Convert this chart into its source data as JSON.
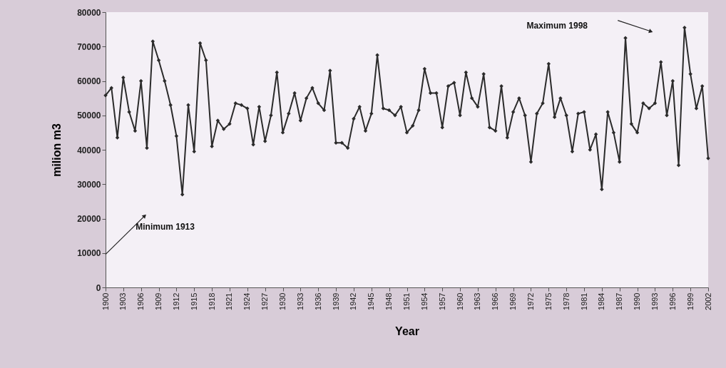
{
  "chart_data": {
    "type": "line",
    "xlabel": "Year",
    "ylabel": "milion m3",
    "x": [
      1900,
      1901,
      1902,
      1903,
      1904,
      1905,
      1906,
      1907,
      1908,
      1909,
      1910,
      1911,
      1912,
      1913,
      1914,
      1915,
      1916,
      1917,
      1918,
      1919,
      1920,
      1921,
      1922,
      1923,
      1924,
      1925,
      1926,
      1927,
      1928,
      1929,
      1930,
      1931,
      1932,
      1933,
      1934,
      1935,
      1936,
      1937,
      1938,
      1939,
      1940,
      1941,
      1942,
      1943,
      1944,
      1945,
      1946,
      1947,
      1948,
      1949,
      1950,
      1951,
      1952,
      1953,
      1954,
      1955,
      1956,
      1957,
      1958,
      1959,
      1960,
      1961,
      1962,
      1963,
      1964,
      1965,
      1966,
      1967,
      1968,
      1969,
      1970,
      1971,
      1972,
      1973,
      1974,
      1975,
      1976,
      1977,
      1978,
      1979,
      1980,
      1981,
      1982,
      1983,
      1984,
      1985,
      1986,
      1987,
      1988,
      1989,
      1990,
      1991,
      1992,
      1993,
      1994,
      1995,
      1996,
      1997,
      1998,
      1999,
      2000,
      2001,
      2002
    ],
    "series": [
      {
        "color": "#2b2b2b",
        "values": [
          55800,
          58000,
          43500,
          61000,
          51000,
          45500,
          60000,
          40500,
          71500,
          66000,
          60000,
          53000,
          44000,
          27000,
          53000,
          39500,
          71000,
          66000,
          41000,
          48500,
          46000,
          47500,
          53500,
          53000,
          52000,
          41500,
          52500,
          42500,
          50000,
          62500,
          45000,
          50500,
          56500,
          48500,
          55000,
          58000,
          53500,
          51500,
          63000,
          42000,
          42000,
          40500,
          49000,
          52500,
          45500,
          50500,
          67500,
          52000,
          51500,
          50000,
          52500,
          45000,
          47000,
          51500,
          63500,
          56500,
          56500,
          46500,
          58500,
          59500,
          50000,
          62500,
          55000,
          52500,
          62000,
          46500,
          45500,
          58500,
          43500,
          51000,
          55000,
          50000,
          36500,
          50500,
          53500,
          65000,
          49500,
          55000,
          50000,
          39500,
          50500,
          51000,
          40000,
          44500,
          28500,
          51000,
          45000,
          36500,
          72500,
          47500,
          45000,
          53500,
          52000,
          53500,
          65500,
          50000,
          60000,
          35500,
          75500,
          62000,
          52000,
          58500,
          37500
        ]
      }
    ],
    "xlim": [
      1900,
      2002
    ],
    "xticks": [
      1900,
      1903,
      1906,
      1909,
      1912,
      1915,
      1918,
      1921,
      1924,
      1927,
      1930,
      1933,
      1936,
      1939,
      1942,
      1945,
      1948,
      1951,
      1954,
      1957,
      1960,
      1963,
      1966,
      1969,
      1972,
      1975,
      1978,
      1981,
      1984,
      1987,
      1990,
      1993,
      1996,
      1999,
      2002
    ],
    "ylim": [
      0,
      80000
    ],
    "yticks": [
      0,
      10000,
      20000,
      30000,
      40000,
      50000,
      60000,
      70000,
      80000
    ],
    "grid": false,
    "marker": "diamond",
    "line_style": "solid",
    "annotations": [
      "Minimum 1913",
      "Maximum 1998"
    ]
  }
}
